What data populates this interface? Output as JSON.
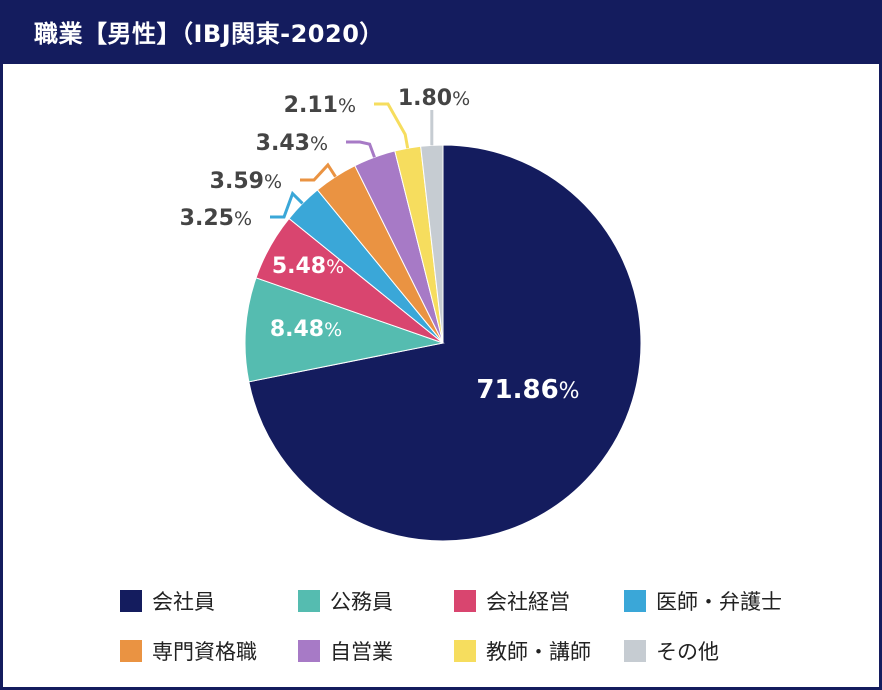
{
  "header": {
    "title": "職業【男性】（IBJ関東-2020）"
  },
  "chart_data": {
    "type": "pie",
    "title": "職業【男性】（IBJ関東-2020）",
    "slices": [
      {
        "label": "会社員",
        "value": 71.86,
        "value_label": "71.86",
        "color": "#141c5e"
      },
      {
        "label": "公務員",
        "value": 8.48,
        "value_label": "8.48",
        "color": "#55bcb0"
      },
      {
        "label": "会社経営",
        "value": 5.48,
        "value_label": "5.48",
        "color": "#d9456f"
      },
      {
        "label": "医師・弁護士",
        "value": 3.25,
        "value_label": "3.25",
        "color": "#3aa7d8"
      },
      {
        "label": "専門資格職",
        "value": 3.59,
        "value_label": "3.59",
        "color": "#ea9342"
      },
      {
        "label": "自営業",
        "value": 3.43,
        "value_label": "3.43",
        "color": "#a77ac6"
      },
      {
        "label": "教師・講師",
        "value": 2.11,
        "value_label": "2.11",
        "color": "#f6dd5e"
      },
      {
        "label": "その他",
        "value": 1.8,
        "value_label": "1.80",
        "color": "#c6ccd2"
      }
    ],
    "unit": "%",
    "start_angle": "12 o'clock",
    "direction": "clockwise",
    "legend_position": "bottom"
  }
}
